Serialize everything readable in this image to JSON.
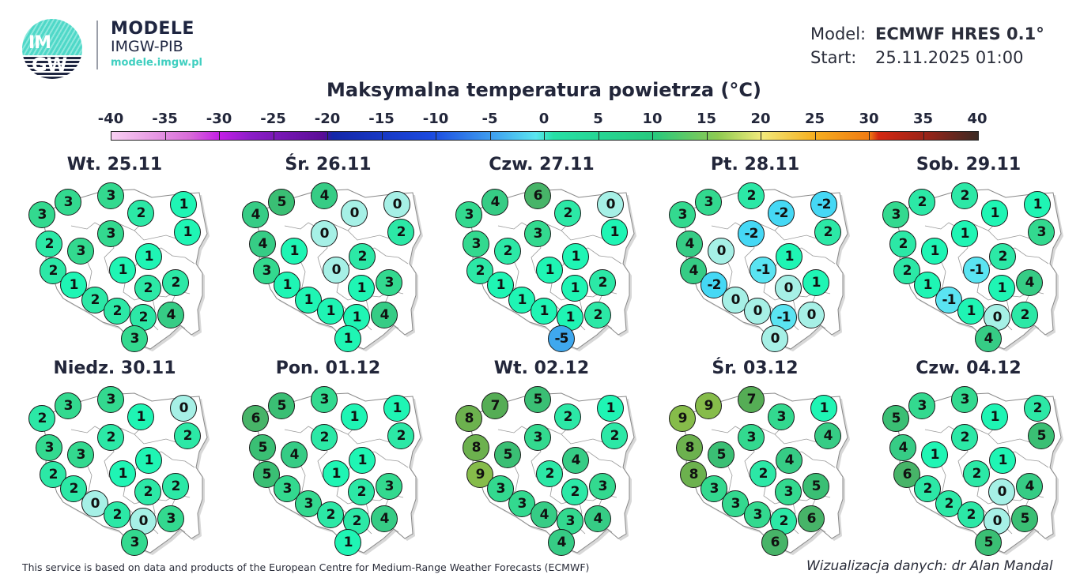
{
  "header": {
    "logo_line1": "IM",
    "logo_line2": "GW",
    "brand_title": "MODELE",
    "brand_subtitle": "IMGW-PIB",
    "brand_url": "modele.imgw.pl",
    "model_label": "Model:",
    "model_value": "ECMWF HRES 0.1°",
    "start_label": "Start:",
    "start_value": "25.11.2025 01:00"
  },
  "title": "Maksymalna temperatura powietrza (°C)",
  "colorbar": {
    "ticks": [
      "-40",
      "-35",
      "-30",
      "-25",
      "-20",
      "-15",
      "-10",
      "-5",
      "0",
      "5",
      "10",
      "15",
      "20",
      "25",
      "30",
      "35",
      "40"
    ],
    "min": -40,
    "max": 40
  },
  "maps": [
    {
      "day": "Wt. 25.11",
      "values": [
        "3",
        "3",
        "3",
        "2",
        "1",
        "1",
        "3",
        "2",
        "3",
        "1",
        "1",
        "2",
        "1",
        "2",
        "2",
        "2",
        "2",
        "2",
        "4",
        "3"
      ]
    },
    {
      "day": "Śr. 26.11",
      "values": [
        "4",
        "5",
        "4",
        "0",
        "0",
        "2",
        "0",
        "4",
        "1",
        "2",
        "0",
        "3",
        "1",
        "1",
        "3",
        "1",
        "1",
        "1",
        "4",
        "1"
      ]
    },
    {
      "day": "Czw. 27.11",
      "values": [
        "3",
        "4",
        "6",
        "2",
        "0",
        "1",
        "3",
        "3",
        "2",
        "1",
        "1",
        "2",
        "1",
        "1",
        "2",
        "1",
        "1",
        "1",
        "2",
        "-5"
      ]
    },
    {
      "day": "Pt. 28.11",
      "values": [
        "3",
        "3",
        "2",
        "-2",
        "-2",
        "2",
        "-2",
        "4",
        "0",
        "1",
        "-1",
        "4",
        "-2",
        "0",
        "1",
        "0",
        "0",
        "-1",
        "0",
        "0"
      ]
    },
    {
      "day": "Sob. 29.11",
      "values": [
        "3",
        "2",
        "2",
        "1",
        "1",
        "3",
        "1",
        "2",
        "1",
        "2",
        "-1",
        "2",
        "1",
        "1",
        "4",
        "-1",
        "1",
        "0",
        "2",
        "4"
      ]
    },
    {
      "day": "Niedz. 30.11",
      "values": [
        "2",
        "3",
        "3",
        "1",
        "0",
        "2",
        "2",
        "3",
        "3",
        "1",
        "1",
        "2",
        "2",
        "2",
        "2",
        "0",
        "2",
        "0",
        "3",
        "3"
      ]
    },
    {
      "day": "Pon. 01.12",
      "values": [
        "6",
        "5",
        "3",
        "1",
        "1",
        "2",
        "2",
        "5",
        "4",
        "1",
        "1",
        "5",
        "3",
        "2",
        "3",
        "3",
        "2",
        "2",
        "4",
        "1"
      ]
    },
    {
      "day": "Wt. 02.12",
      "values": [
        "8",
        "7",
        "5",
        "2",
        "1",
        "2",
        "3",
        "8",
        "5",
        "4",
        "2",
        "9",
        "3",
        "2",
        "3",
        "3",
        "4",
        "3",
        "4",
        "4"
      ]
    },
    {
      "day": "Śr. 03.12",
      "values": [
        "9",
        "9",
        "7",
        "3",
        "1",
        "4",
        "3",
        "8",
        "5",
        "4",
        "2",
        "8",
        "3",
        "3",
        "5",
        "3",
        "3",
        "2",
        "6",
        "6"
      ]
    },
    {
      "day": "Czw. 04.12",
      "values": [
        "5",
        "3",
        "3",
        "1",
        "2",
        "5",
        "2",
        "4",
        "1",
        "1",
        "2",
        "6",
        "2",
        "0",
        "4",
        "2",
        "2",
        "0",
        "5",
        "5"
      ]
    }
  ],
  "footer": {
    "attribution": "This service is based on data and products of the European Centre for Medium-Range Weather Forecasts (ECMWF)",
    "credit": "Wizualizacja danych: dr Alan Mandal"
  }
}
